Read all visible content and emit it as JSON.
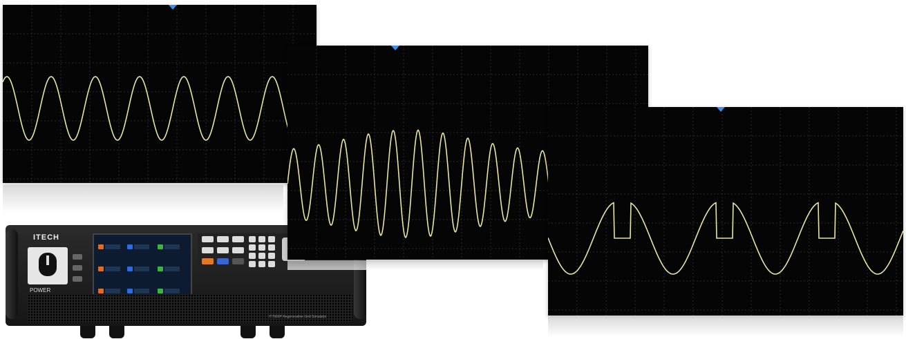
{
  "device": {
    "brand": "ITECH",
    "power_label": "POWER",
    "model_label": "IT7900P Regenerative Grid Simulator"
  },
  "colors": {
    "scope_background": "#050505",
    "grid_line": "#2a2a2a",
    "trace": "#e8e6a0",
    "trigger_marker": "#3d8fe8",
    "accent_orange": "#e06a26",
    "accent_blue": "#2f6bd8",
    "accent_green": "#3cb049"
  },
  "scopes": [
    {
      "name": "steady-sine",
      "waveform": "sine",
      "cycles_visible": 7
    },
    {
      "name": "amplitude-modulated-sine",
      "waveform": "sine-amplitude-swell",
      "cycles_visible": 10
    },
    {
      "name": "phase-cut-sine",
      "waveform": "sine-with-flat-dropouts",
      "cycles_visible": 3
    }
  ]
}
